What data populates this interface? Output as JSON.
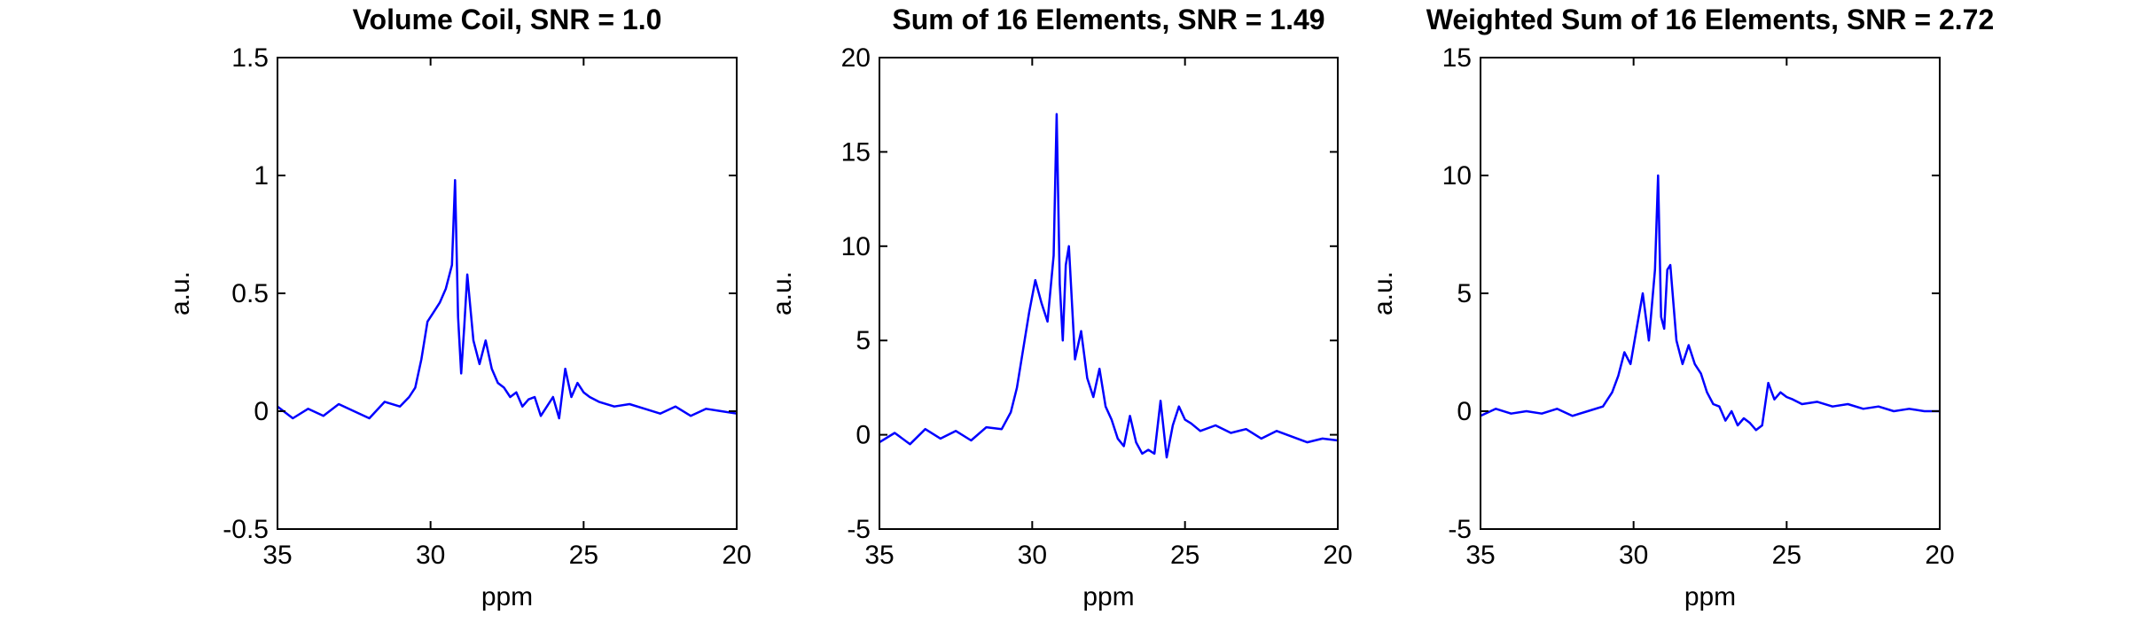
{
  "chart_data": [
    {
      "type": "line",
      "title": "Volume Coil, SNR = 1.0",
      "xlabel": "ppm",
      "ylabel": "a.u.",
      "xlim": [
        35,
        20
      ],
      "x_reversed": true,
      "ylim": [
        -0.5,
        1.5
      ],
      "xticks": [
        35,
        30,
        25,
        20
      ],
      "xtick_labels": [
        "35",
        "30",
        "25",
        "20"
      ],
      "yticks": [
        -0.5,
        0,
        0.5,
        1,
        1.5
      ],
      "ytick_labels": [
        "-0.5",
        "0",
        "0.5",
        "1",
        "1.5"
      ],
      "grid": false,
      "line_color": "#0000ff",
      "series": [
        {
          "x": [
            35,
            34.5,
            34,
            33.5,
            33,
            32.5,
            32,
            31.5,
            31,
            30.7,
            30.5,
            30.3,
            30.1,
            29.9,
            29.7,
            29.5,
            29.3,
            29.2,
            29.1,
            29.0,
            28.9,
            28.8,
            28.6,
            28.4,
            28.2,
            28.0,
            27.8,
            27.6,
            27.4,
            27.2,
            27.0,
            26.8,
            26.6,
            26.4,
            26.2,
            26.0,
            25.8,
            25.6,
            25.4,
            25.2,
            25.0,
            24.8,
            24.5,
            24.0,
            23.5,
            23.0,
            22.5,
            22.0,
            21.5,
            21.0,
            20.5,
            20.0
          ],
          "y": [
            0.02,
            -0.03,
            0.01,
            -0.02,
            0.03,
            0.0,
            -0.03,
            0.04,
            0.02,
            0.06,
            0.1,
            0.22,
            0.38,
            0.42,
            0.46,
            0.52,
            0.62,
            0.98,
            0.4,
            0.16,
            0.36,
            0.58,
            0.3,
            0.2,
            0.3,
            0.18,
            0.12,
            0.1,
            0.06,
            0.08,
            0.02,
            0.05,
            0.06,
            -0.02,
            0.02,
            0.06,
            -0.03,
            0.18,
            0.06,
            0.12,
            0.08,
            0.06,
            0.04,
            0.02,
            0.03,
            0.01,
            -0.01,
            0.02,
            -0.02,
            0.01,
            0.0,
            -0.01
          ]
        }
      ]
    },
    {
      "type": "line",
      "title": "Sum of 16 Elements, SNR = 1.49",
      "xlabel": "ppm",
      "ylabel": "a.u.",
      "xlim": [
        35,
        20
      ],
      "x_reversed": true,
      "ylim": [
        -5,
        20
      ],
      "xticks": [
        35,
        30,
        25,
        20
      ],
      "xtick_labels": [
        "35",
        "30",
        "25",
        "20"
      ],
      "yticks": [
        -5,
        0,
        5,
        10,
        15,
        20
      ],
      "ytick_labels": [
        "-5",
        "0",
        "5",
        "10",
        "15",
        "20"
      ],
      "grid": false,
      "line_color": "#0000ff",
      "series": [
        {
          "x": [
            35,
            34.5,
            34,
            33.5,
            33,
            32.5,
            32,
            31.5,
            31,
            30.7,
            30.5,
            30.3,
            30.1,
            29.9,
            29.7,
            29.5,
            29.3,
            29.2,
            29.1,
            29.0,
            28.9,
            28.8,
            28.6,
            28.4,
            28.2,
            28.0,
            27.8,
            27.6,
            27.4,
            27.2,
            27.0,
            26.8,
            26.6,
            26.4,
            26.2,
            26.0,
            25.8,
            25.6,
            25.4,
            25.2,
            25.0,
            24.8,
            24.5,
            24.0,
            23.5,
            23.0,
            22.5,
            22.0,
            21.5,
            21.0,
            20.5,
            20.0
          ],
          "y": [
            -0.4,
            0.1,
            -0.5,
            0.3,
            -0.2,
            0.2,
            -0.3,
            0.4,
            0.3,
            1.2,
            2.5,
            4.5,
            6.5,
            8.2,
            7.0,
            6.0,
            9.5,
            17.0,
            8.0,
            5.0,
            9.0,
            10.0,
            4.0,
            5.5,
            3.0,
            2.0,
            3.5,
            1.5,
            0.8,
            -0.2,
            -0.6,
            1.0,
            -0.4,
            -1.0,
            -0.8,
            -1.0,
            1.8,
            -1.2,
            0.5,
            1.5,
            0.8,
            0.6,
            0.2,
            0.5,
            0.1,
            0.3,
            -0.2,
            0.2,
            -0.1,
            -0.4,
            -0.2,
            -0.3
          ]
        }
      ]
    },
    {
      "type": "line",
      "title": "Weighted Sum of 16 Elements, SNR = 2.72",
      "xlabel": "ppm",
      "ylabel": "a.u.",
      "xlim": [
        35,
        20
      ],
      "x_reversed": true,
      "ylim": [
        -5,
        15
      ],
      "xticks": [
        35,
        30,
        25,
        20
      ],
      "xtick_labels": [
        "35",
        "30",
        "25",
        "20"
      ],
      "yticks": [
        -5,
        0,
        5,
        10,
        15
      ],
      "ytick_labels": [
        "-5",
        "0",
        "5",
        "10",
        "15"
      ],
      "grid": false,
      "line_color": "#0000ff",
      "series": [
        {
          "x": [
            35,
            34.5,
            34,
            33.5,
            33,
            32.5,
            32,
            31.5,
            31,
            30.7,
            30.5,
            30.3,
            30.1,
            29.9,
            29.7,
            29.5,
            29.3,
            29.2,
            29.1,
            29.0,
            28.9,
            28.8,
            28.6,
            28.4,
            28.2,
            28.0,
            27.8,
            27.6,
            27.4,
            27.2,
            27.0,
            26.8,
            26.6,
            26.4,
            26.2,
            26.0,
            25.8,
            25.6,
            25.4,
            25.2,
            25.0,
            24.8,
            24.5,
            24.0,
            23.5,
            23.0,
            22.5,
            22.0,
            21.5,
            21.0,
            20.5,
            20.0
          ],
          "y": [
            -0.2,
            0.1,
            -0.1,
            0.0,
            -0.1,
            0.1,
            -0.2,
            0.0,
            0.2,
            0.8,
            1.5,
            2.5,
            2.0,
            3.5,
            5.0,
            3.0,
            6.0,
            10.0,
            4.0,
            3.5,
            6.0,
            6.2,
            3.0,
            2.0,
            2.8,
            2.0,
            1.6,
            0.8,
            0.3,
            0.2,
            -0.4,
            0.0,
            -0.6,
            -0.3,
            -0.5,
            -0.8,
            -0.6,
            1.2,
            0.5,
            0.8,
            0.6,
            0.5,
            0.3,
            0.4,
            0.2,
            0.3,
            0.1,
            0.2,
            0.0,
            0.1,
            0.0,
            0.0
          ]
        }
      ]
    }
  ]
}
